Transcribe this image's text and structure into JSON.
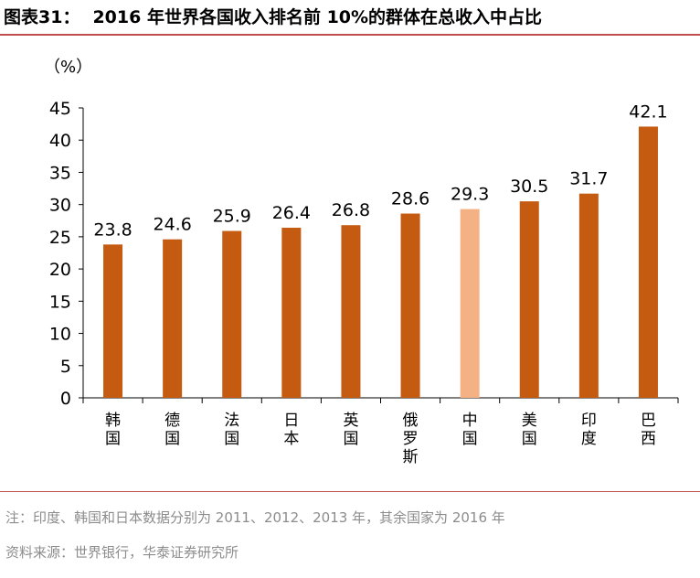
{
  "figure": {
    "number": "图表31：",
    "title": "2016 年世界各国收入排名前 10%的群体在总收入中占比"
  },
  "chart_data": {
    "type": "bar",
    "unit_label": "（%）",
    "categories": [
      "韩国",
      "德国",
      "法国",
      "日本",
      "英国",
      "俄罗斯",
      "中国",
      "美国",
      "印度",
      "巴西"
    ],
    "values": [
      23.8,
      24.6,
      25.9,
      26.4,
      26.8,
      28.6,
      29.3,
      30.5,
      31.7,
      42.1
    ],
    "value_labels": [
      "23.8",
      "24.6",
      "25.9",
      "26.4",
      "26.8",
      "28.6",
      "29.3",
      "30.5",
      "31.7",
      "42.1"
    ],
    "ylim": [
      0,
      45
    ],
    "yticks": [
      0,
      5,
      10,
      15,
      20,
      25,
      30,
      35,
      40,
      45
    ],
    "grid": false,
    "legend": "none",
    "colors": {
      "bar": "#c55a11",
      "highlight": "#f4b183"
    },
    "highlight_category": "中国"
  },
  "footnotes": {
    "note": "注：印度、韩国和日本数据分别为 2011、2012、2013 年，其余国家为 2016 年",
    "source": "资料来源：世界银行，华泰证券研究所"
  },
  "theme": {
    "rule_color": "#c0504d"
  }
}
